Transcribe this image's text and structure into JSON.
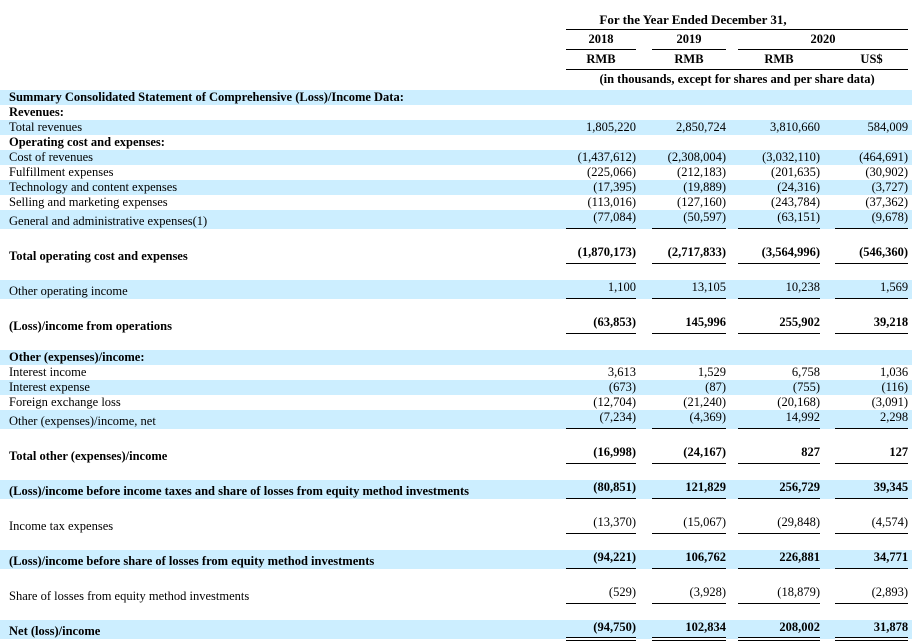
{
  "header": {
    "period_title": "For the Year Ended December 31,",
    "years": [
      {
        "label": "2018"
      },
      {
        "label": "2019"
      },
      {
        "label": "2020"
      }
    ],
    "currencies": [
      "RMB",
      "RMB",
      "RMB",
      "US$"
    ],
    "units_note": "(in thousands, except for shares and per share data)"
  },
  "colors": {
    "row_shade": "#cceeff",
    "text": "#000000",
    "rule": "#000000"
  },
  "rows": [
    {
      "type": "section",
      "label": "Summary Consolidated Statement of Comprehensive (Loss)/Income Data:",
      "shaded": true,
      "bold": true
    },
    {
      "type": "section",
      "label": "Revenues:",
      "shaded": false,
      "bold": true
    },
    {
      "type": "item",
      "label": "Total revenues",
      "shaded": true,
      "values": [
        "1,805,220",
        "2,850,724",
        "3,810,660",
        "584,009"
      ]
    },
    {
      "type": "section",
      "label": "Operating cost and expenses:",
      "shaded": false,
      "bold": true
    },
    {
      "type": "item",
      "label": "Cost of revenues",
      "shaded": true,
      "values": [
        "(1,437,612)",
        "(2,308,004)",
        "(3,032,110)",
        "(464,691)"
      ]
    },
    {
      "type": "item",
      "label": "Fulfillment expenses",
      "shaded": false,
      "values": [
        "(225,066)",
        "(212,183)",
        "(201,635)",
        "(30,902)"
      ]
    },
    {
      "type": "item",
      "label": "Technology and content expenses",
      "shaded": true,
      "values": [
        "(17,395)",
        "(19,889)",
        "(24,316)",
        "(3,727)"
      ]
    },
    {
      "type": "item",
      "label": "Selling and marketing expenses",
      "shaded": false,
      "values": [
        "(113,016)",
        "(127,160)",
        "(243,784)",
        "(37,362)"
      ]
    },
    {
      "type": "item",
      "label": "General and administrative expenses(1)",
      "shaded": true,
      "values": [
        "(77,084)",
        "(50,597)",
        "(63,151)",
        "(9,678)"
      ],
      "underline": "single"
    },
    {
      "type": "spacer"
    },
    {
      "type": "total",
      "label": "Total operating cost and expenses",
      "shaded": false,
      "bold": true,
      "values": [
        "(1,870,173)",
        "(2,717,833)",
        "(3,564,996)",
        "(546,360)"
      ],
      "underline": "single"
    },
    {
      "type": "spacer"
    },
    {
      "type": "item",
      "label": "Other operating income",
      "shaded": true,
      "values": [
        "1,100",
        "13,105",
        "10,238",
        "1,569"
      ],
      "underline": "single"
    },
    {
      "type": "spacer"
    },
    {
      "type": "total",
      "label": "(Loss)/income from operations",
      "shaded": false,
      "bold": true,
      "values": [
        "(63,853)",
        "145,996",
        "255,902",
        "39,218"
      ],
      "underline": "single"
    },
    {
      "type": "spacer"
    },
    {
      "type": "section",
      "label": "Other (expenses)/income:",
      "shaded": true,
      "bold": true
    },
    {
      "type": "item",
      "label": "Interest income",
      "shaded": false,
      "values": [
        "3,613",
        "1,529",
        "6,758",
        "1,036"
      ]
    },
    {
      "type": "item",
      "label": "Interest expense",
      "shaded": true,
      "values": [
        "(673)",
        "(87)",
        "(755)",
        "(116)"
      ]
    },
    {
      "type": "item",
      "label": "Foreign exchange loss",
      "shaded": false,
      "values": [
        "(12,704)",
        "(21,240)",
        "(20,168)",
        "(3,091)"
      ]
    },
    {
      "type": "item",
      "label": "Other (expenses)/income, net",
      "shaded": true,
      "values": [
        "(7,234)",
        "(4,369)",
        "14,992",
        "2,298"
      ],
      "underline": "single"
    },
    {
      "type": "spacer"
    },
    {
      "type": "total",
      "label": "Total other (expenses)/income",
      "shaded": false,
      "bold": true,
      "values": [
        "(16,998)",
        "(24,167)",
        "827",
        "127"
      ],
      "underline": "single"
    },
    {
      "type": "spacer"
    },
    {
      "type": "total",
      "label": "(Loss)/income before income taxes and share of losses from equity method investments",
      "shaded": true,
      "bold": true,
      "values": [
        "(80,851)",
        "121,829",
        "256,729",
        "39,345"
      ],
      "underline": "single"
    },
    {
      "type": "spacer"
    },
    {
      "type": "item",
      "label": "Income tax expenses",
      "shaded": false,
      "values": [
        "(13,370)",
        "(15,067)",
        "(29,848)",
        "(4,574)"
      ],
      "underline": "single"
    },
    {
      "type": "spacer"
    },
    {
      "type": "total",
      "label": "(Loss)/income before share of losses from equity method investments",
      "shaded": true,
      "bold": true,
      "values": [
        "(94,221)",
        "106,762",
        "226,881",
        "34,771"
      ],
      "underline": "single"
    },
    {
      "type": "spacer"
    },
    {
      "type": "item",
      "label": "Share of losses from equity method investments",
      "shaded": false,
      "values": [
        "(529)",
        "(3,928)",
        "(18,879)",
        "(2,893)"
      ],
      "underline": "single"
    },
    {
      "type": "spacer"
    },
    {
      "type": "total",
      "label": "Net (loss)/income",
      "shaded": true,
      "bold": true,
      "values": [
        "(94,750)",
        "102,834",
        "208,002",
        "31,878"
      ],
      "underline": "double"
    }
  ]
}
